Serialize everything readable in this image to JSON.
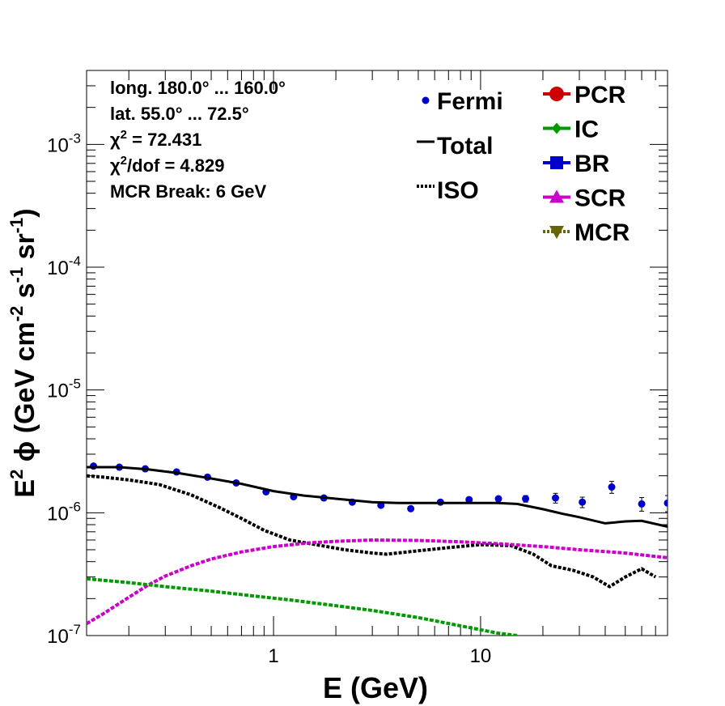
{
  "chart_data": {
    "type": "line",
    "xlabel": "E (GeV)",
    "ylabel_parts": [
      "E",
      "2",
      " ϕ (GeV cm",
      "-2",
      " s",
      "-1",
      " sr",
      "-1",
      ")"
    ],
    "xscale": "log",
    "yscale": "log",
    "xlim": [
      0.125,
      80
    ],
    "ylim": [
      1e-07,
      0.004
    ],
    "x_tick_labels": [
      {
        "value": 1,
        "label": "1"
      },
      {
        "value": 10,
        "label": "10"
      }
    ],
    "y_tick_labels": [
      {
        "value": 1e-07,
        "base": "10",
        "exp": "-7"
      },
      {
        "value": 1e-06,
        "base": "10",
        "exp": "-6"
      },
      {
        "value": 1e-05,
        "base": "10",
        "exp": "-5"
      },
      {
        "value": 0.0001,
        "base": "10",
        "exp": "-4"
      },
      {
        "value": 0.001,
        "base": "10",
        "exp": "-3"
      }
    ],
    "info_lines": [
      {
        "text": "long. 180.0° ... 160.0°"
      },
      {
        "text": "lat. 55.0° ... 72.5°"
      },
      {
        "pre": "χ",
        "sup": "2",
        "post": " = 72.431"
      },
      {
        "pre": "χ",
        "sup": "2",
        "post": "/dof = 4.829"
      },
      {
        "text": "MCR Break:  6 GeV"
      }
    ],
    "legend_left": [
      {
        "label": "Fermi",
        "marker": "dot",
        "color": "#0000cc"
      },
      {
        "label": "Total",
        "marker": "line",
        "color": "#000000"
      },
      {
        "label": "ISO",
        "marker": "dotted",
        "color": "#000000"
      }
    ],
    "legend_right": [
      {
        "label": "PCR",
        "marker": "circle",
        "color": "#cc0000"
      },
      {
        "label": "IC",
        "marker": "diamond",
        "color": "#009900"
      },
      {
        "label": "BR",
        "marker": "square",
        "color": "#0000cc"
      },
      {
        "label": "SCR",
        "marker": "triangle-up",
        "color": "#cc00cc"
      },
      {
        "label": "MCR",
        "marker": "triangle-down",
        "color": "#666600"
      }
    ],
    "series": [
      {
        "name": "Fermi",
        "kind": "points",
        "color": "#0000cc",
        "x": [
          0.135,
          0.18,
          0.24,
          0.34,
          0.48,
          0.66,
          0.92,
          1.25,
          1.75,
          2.4,
          3.3,
          4.6,
          6.4,
          8.8,
          12.2,
          16.5,
          23,
          31,
          43,
          60,
          80
        ],
        "y": [
          2.4e-06,
          2.35e-06,
          2.28e-06,
          2.15e-06,
          1.95e-06,
          1.75e-06,
          1.48e-06,
          1.35e-06,
          1.32e-06,
          1.22e-06,
          1.15e-06,
          1.08e-06,
          1.22e-06,
          1.28e-06,
          1.3e-06,
          1.3e-06,
          1.32e-06,
          1.22e-06,
          1.62e-06,
          1.18e-06,
          1.2e-06
        ],
        "yerr": [
          0,
          0,
          0,
          0,
          0,
          0,
          0,
          0,
          0,
          0,
          0,
          0,
          0,
          0,
          5e-08,
          8e-08,
          1.2e-07,
          1.2e-07,
          1.8e-07,
          1.5e-07,
          1.8e-07
        ]
      },
      {
        "name": "Total",
        "kind": "line",
        "style": "solid",
        "color": "#000000",
        "x": [
          0.125,
          0.18,
          0.25,
          0.35,
          0.5,
          0.7,
          1.0,
          1.4,
          2.0,
          3.0,
          4.0,
          6.0,
          8.0,
          12,
          15,
          20,
          25,
          30,
          40,
          50,
          60,
          80
        ],
        "y": [
          2.35e-06,
          2.35e-06,
          2.25e-06,
          2.1e-06,
          1.9e-06,
          1.72e-06,
          1.5e-06,
          1.38e-06,
          1.3e-06,
          1.22e-06,
          1.2e-06,
          1.2e-06,
          1.2e-06,
          1.2e-06,
          1.18e-06,
          1.07e-06,
          9.8e-07,
          9.2e-07,
          8.2e-07,
          8.5e-07,
          8.6e-07,
          7.7e-07
        ]
      },
      {
        "name": "ISO",
        "kind": "line",
        "style": "dotted",
        "color": "#000000",
        "x": [
          0.125,
          0.15,
          0.2,
          0.28,
          0.4,
          0.55,
          0.7,
          0.9,
          1.2,
          1.6,
          2.2,
          3.0,
          3.5,
          5.0,
          7.0,
          10,
          14,
          18,
          22,
          28,
          35,
          42,
          50,
          60,
          70
        ],
        "y": [
          2e-06,
          1.95e-06,
          1.85e-06,
          1.7e-06,
          1.4e-06,
          1.1e-06,
          9e-07,
          7.2e-07,
          6e-07,
          5.5e-07,
          5e-07,
          4.7e-07,
          4.6e-07,
          4.9e-07,
          5.2e-07,
          5.5e-07,
          5.4e-07,
          4.6e-07,
          3.7e-07,
          3.4e-07,
          3e-07,
          2.5e-07,
          3e-07,
          3.5e-07,
          3e-07
        ]
      },
      {
        "name": "SCR",
        "kind": "line",
        "style": "dashed",
        "color": "#cc00cc",
        "x": [
          0.125,
          0.15,
          0.2,
          0.25,
          0.3,
          0.4,
          0.5,
          0.7,
          1.0,
          1.5,
          2.0,
          3.0,
          5.0,
          8.0,
          12,
          20,
          30,
          50,
          80
        ],
        "y": [
          1.25e-07,
          1.5e-07,
          2.05e-07,
          2.6e-07,
          3.05e-07,
          3.7e-07,
          4.2e-07,
          4.8e-07,
          5.3e-07,
          5.7e-07,
          5.85e-07,
          6e-07,
          5.95e-07,
          5.8e-07,
          5.6e-07,
          5.3e-07,
          5e-07,
          4.7e-07,
          4.3e-07
        ]
      },
      {
        "name": "IC",
        "kind": "line",
        "style": "dashed",
        "color": "#009900",
        "x": [
          0.125,
          0.2,
          0.3,
          0.5,
          0.8,
          1.2,
          2.0,
          3.0,
          5.0,
          8.0,
          12,
          15
        ],
        "y": [
          2.9e-07,
          2.7e-07,
          2.5e-07,
          2.3e-07,
          2.1e-07,
          1.95e-07,
          1.75e-07,
          1.6e-07,
          1.4e-07,
          1.2e-07,
          1.05e-07,
          1e-07
        ]
      }
    ]
  }
}
